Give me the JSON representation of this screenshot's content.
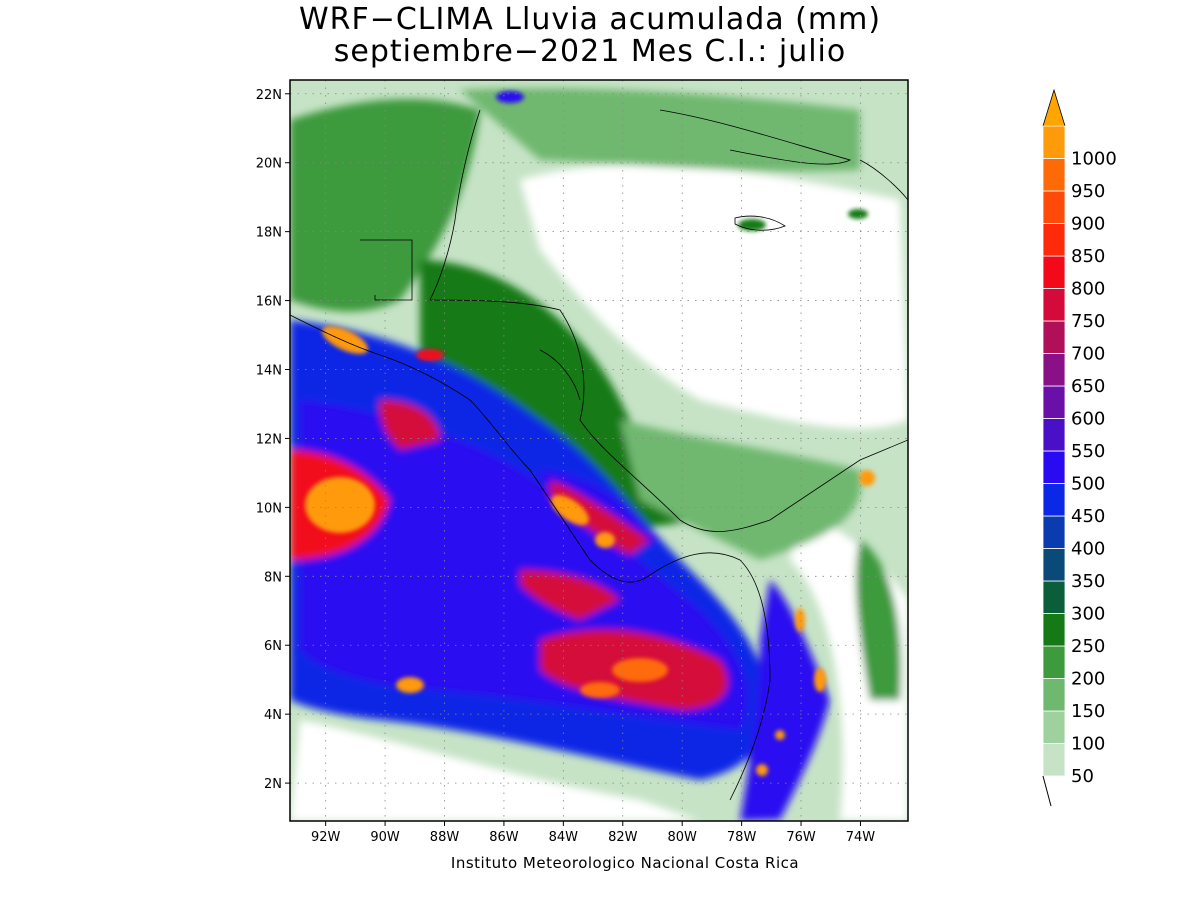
{
  "title_line1": "WRF−CLIMA Lluvia acumulada (mm)",
  "title_line2": "septiembre−2021 Mes C.I.: julio",
  "credit": "Instituto Meteorologico Nacional Costa Rica",
  "map": {
    "lon_range": [
      -93.2,
      -72.4
    ],
    "lat_range": [
      0.9,
      22.4
    ],
    "lon_ticks": [
      "92W",
      "90W",
      "88W",
      "86W",
      "84W",
      "82W",
      "80W",
      "78W",
      "76W",
      "74W"
    ],
    "lon_tick_values": [
      -92,
      -90,
      -88,
      -86,
      -84,
      -82,
      -80,
      -78,
      -76,
      -74
    ],
    "lat_ticks": [
      "2N",
      "4N",
      "6N",
      "8N",
      "10N",
      "12N",
      "14N",
      "16N",
      "18N",
      "20N",
      "22N"
    ],
    "lat_tick_values": [
      2,
      4,
      6,
      8,
      10,
      12,
      14,
      16,
      18,
      20,
      22
    ],
    "grid": "dotted"
  },
  "colorbar": {
    "levels": [
      "50",
      "100",
      "150",
      "200",
      "250",
      "300",
      "350",
      "400",
      "450",
      "500",
      "550",
      "600",
      "650",
      "700",
      "750",
      "800",
      "850",
      "900",
      "950",
      "1000"
    ],
    "colors": [
      "#c6e3c6",
      "#9fd19f",
      "#6fb86f",
      "#3d9a3d",
      "#157a15",
      "#0a5f3a",
      "#0a4a78",
      "#0a3cb0",
      "#0a28e6",
      "#2a0af0",
      "#4a10c8",
      "#6a10a8",
      "#8a1088",
      "#b0105a",
      "#d40a3a",
      "#f20a1a",
      "#ff2a0a",
      "#ff4a0a",
      "#ff6a08",
      "#ff9a0a"
    ],
    "arrow_color": "#ffa500",
    "extends": "max"
  }
}
